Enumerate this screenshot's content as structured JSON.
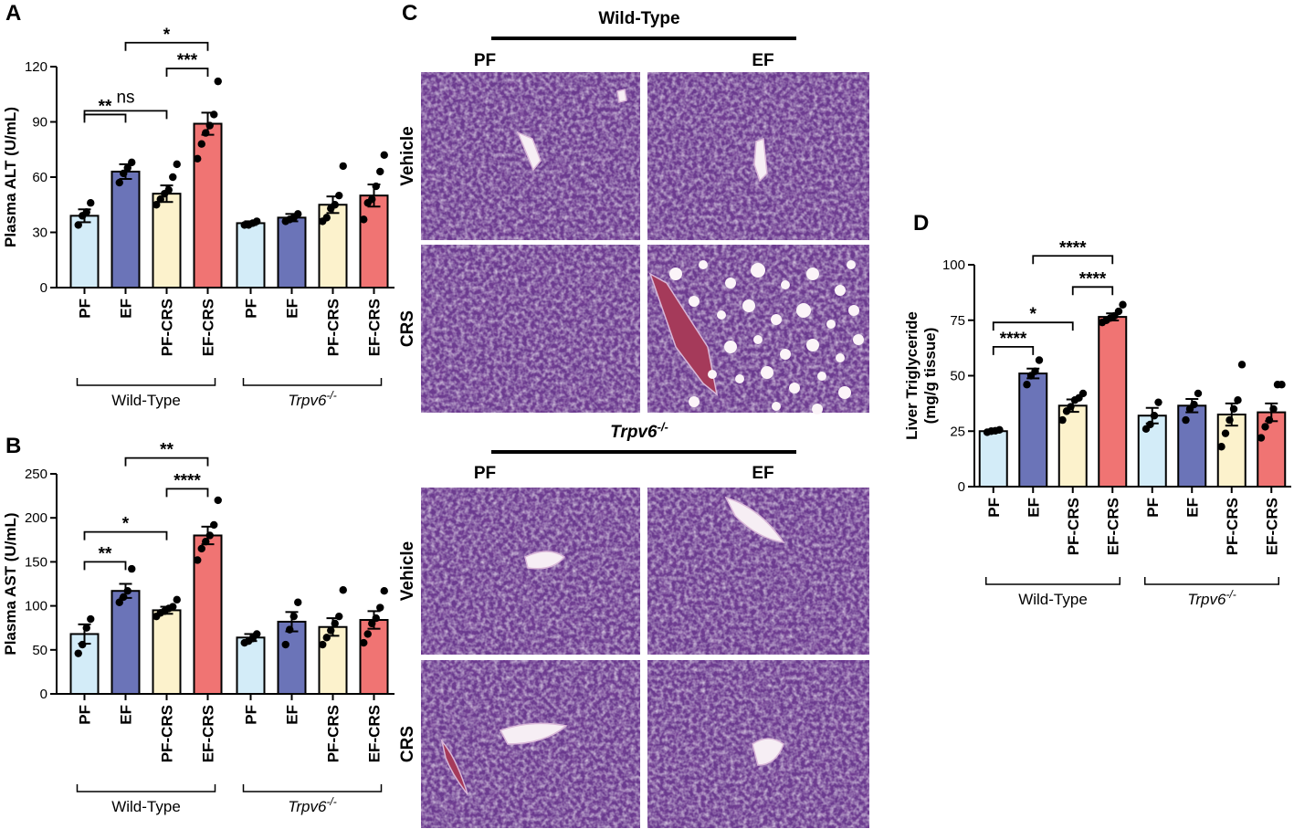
{
  "colors": {
    "PF": "#d3ecf8",
    "EF": "#6b74b8",
    "PF-CRS": "#fcf2cc",
    "EF-CRS": "#f07473",
    "tissue": "#6a3a8e",
    "tissue_dark": "#4a2470",
    "vessel": "#f6eef4"
  },
  "chart_data": [
    {
      "panel": "A",
      "type": "bar",
      "ylabel": "Plasma ALT (U/mL)",
      "ylim": [
        0,
        120
      ],
      "yticks": [
        0,
        30,
        60,
        90,
        120
      ],
      "categories": [
        "PF",
        "EF",
        "PF-CRS",
        "EF-CRS",
        "PF",
        "EF",
        "PF-CRS",
        "EF-CRS"
      ],
      "groups": [
        {
          "label": "Wild-Type",
          "italic": false,
          "suffix": ""
        },
        {
          "label": "Trpv6",
          "italic": true,
          "suffix": "-/-"
        }
      ],
      "values": [
        39,
        63,
        51,
        89,
        35,
        38,
        45,
        50
      ],
      "errors": [
        3.5,
        4,
        4.5,
        6,
        1,
        2,
        4.5,
        6
      ],
      "points": [
        [
          34,
          39,
          41,
          46
        ],
        [
          57,
          62,
          65,
          68
        ],
        [
          45,
          48,
          51,
          53,
          60,
          67
        ],
        [
          70,
          78,
          84,
          88,
          94,
          112
        ],
        [
          34,
          34,
          35,
          36
        ],
        [
          36,
          37,
          38,
          40
        ],
        [
          36,
          38,
          43,
          45,
          50,
          66
        ],
        [
          37,
          46,
          48,
          55,
          63,
          72
        ]
      ],
      "comparisons": [
        {
          "a": 0,
          "b": 1,
          "y": 94,
          "label": "**"
        },
        {
          "a": 0,
          "b": 2,
          "y": 96,
          "label": "ns"
        },
        {
          "a": 2,
          "b": 3,
          "y": 119,
          "label": "***"
        },
        {
          "a": 1,
          "b": 3,
          "y": 133,
          "label": "*"
        }
      ]
    },
    {
      "panel": "B",
      "type": "bar",
      "ylabel": "Plasma AST (U/mL)",
      "ylim": [
        0,
        250
      ],
      "yticks": [
        0,
        50,
        100,
        150,
        200,
        250
      ],
      "categories": [
        "PF",
        "EF",
        "PF-CRS",
        "EF-CRS",
        "PF",
        "EF",
        "PF-CRS",
        "EF-CRS"
      ],
      "groups": [
        {
          "label": "Wild-Type",
          "italic": false,
          "suffix": ""
        },
        {
          "label": "Trpv6",
          "italic": true,
          "suffix": "-/-"
        }
      ],
      "values": [
        68,
        117,
        95,
        180,
        64,
        82,
        76,
        84
      ],
      "errors": [
        11,
        8,
        4,
        10,
        4,
        11,
        10,
        10
      ],
      "points": [
        [
          46,
          56,
          75,
          85
        ],
        [
          104,
          110,
          117,
          142
        ],
        [
          88,
          92,
          94,
          97,
          99,
          107
        ],
        [
          152,
          165,
          173,
          180,
          192,
          220
        ],
        [
          58,
          60,
          63,
          68
        ],
        [
          56,
          73,
          88,
          104
        ],
        [
          56,
          64,
          72,
          80,
          88,
          118
        ],
        [
          58,
          68,
          80,
          86,
          98,
          117
        ]
      ],
      "comparisons": [
        {
          "a": 0,
          "b": 1,
          "y": 150,
          "label": "**"
        },
        {
          "a": 0,
          "b": 2,
          "y": 184,
          "label": "*"
        },
        {
          "a": 2,
          "b": 3,
          "y": 233,
          "label": "****"
        },
        {
          "a": 1,
          "b": 3,
          "y": 268,
          "label": "**"
        }
      ]
    },
    {
      "panel": "D",
      "type": "bar",
      "ylabel": "Liver Triglyceride",
      "ylabel2": "(mg/g tissue)",
      "ylim": [
        0,
        100
      ],
      "yticks": [
        0,
        25,
        50,
        75,
        100
      ],
      "categories": [
        "PF",
        "EF",
        "PF-CRS",
        "EF-CRS",
        "PF",
        "EF",
        "PF-CRS",
        "EF-CRS"
      ],
      "groups": [
        {
          "label": "Wild-Type",
          "italic": false,
          "suffix": ""
        },
        {
          "label": "Trpv6",
          "italic": true,
          "suffix": "-/-"
        }
      ],
      "values": [
        25,
        51,
        36.5,
        76.5,
        32,
        36.5,
        32.5,
        33.5
      ],
      "errors": [
        0.6,
        2.2,
        2.8,
        1.6,
        3.5,
        3,
        5,
        4
      ],
      "points": [
        [
          24.5,
          25,
          25.2,
          25.6
        ],
        [
          46,
          50,
          52,
          57
        ],
        [
          30,
          34,
          36,
          39,
          40,
          42
        ],
        [
          74,
          75,
          76,
          77,
          79,
          82
        ],
        [
          26,
          28,
          32,
          38
        ],
        [
          30,
          35,
          37,
          42
        ],
        [
          18,
          24,
          30,
          35,
          39,
          55
        ],
        [
          22,
          27,
          30,
          35,
          46,
          46
        ]
      ],
      "comparisons": [
        {
          "a": 0,
          "b": 1,
          "y": 63,
          "label": "****"
        },
        {
          "a": 0,
          "b": 2,
          "y": 74,
          "label": "*"
        },
        {
          "a": 2,
          "b": 3,
          "y": 90,
          "label": "****"
        },
        {
          "a": 1,
          "b": 3,
          "y": 104,
          "label": "****"
        }
      ]
    }
  ],
  "panelC": {
    "label": "C",
    "sections": [
      {
        "title": "Wild-Type",
        "title_italic": false,
        "title_suffix": "",
        "cols": [
          "PF",
          "EF"
        ],
        "rows": [
          "Vehicle",
          "CRS"
        ]
      },
      {
        "title": "Trpv6",
        "title_italic": true,
        "title_suffix": "-/-",
        "cols": [
          "PF",
          "EF"
        ],
        "rows": [
          "Vehicle",
          "CRS"
        ]
      }
    ]
  }
}
